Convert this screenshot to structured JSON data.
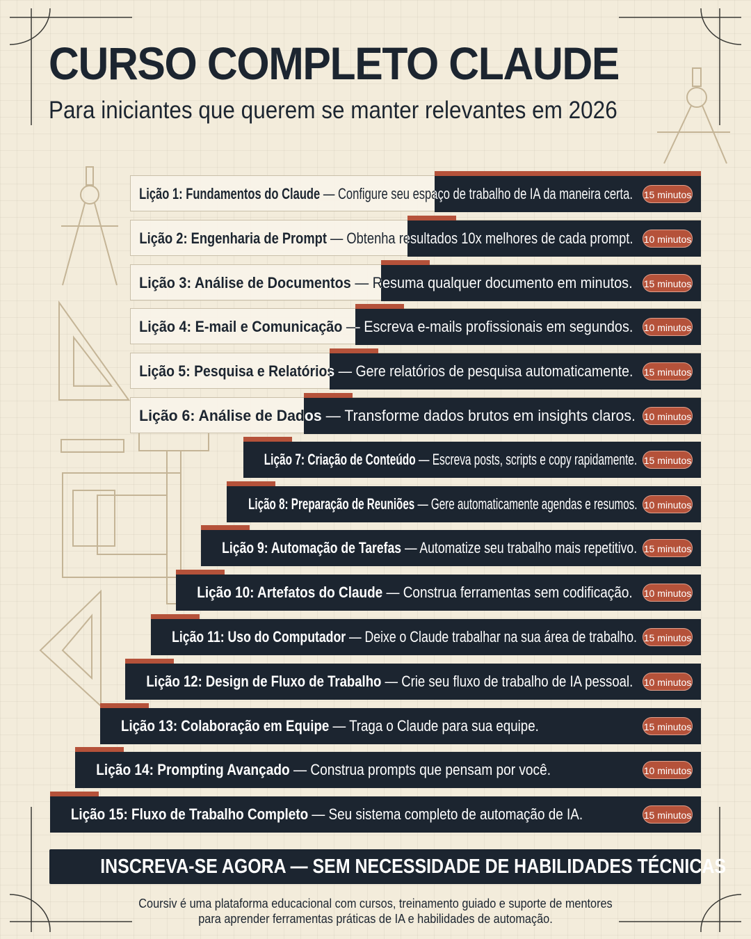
{
  "title": "CURSO COMPLETO CLAUDE",
  "subtitle": "Para iniciantes que querem se manter relevantes em 2026",
  "colors": {
    "background": "#f3ecdb",
    "dark": "#1c2530",
    "accent": "#b5523a"
  },
  "lessons": [
    {
      "title": "Lição 1: Fundamentos do Claude",
      "desc": " — Configure seu espaço de trabalho de IA da maneira certa.",
      "duration": "15 minutos"
    },
    {
      "title": "Lição 2: Engenharia de Prompt",
      "desc": " — Obtenha resultados 10x melhores de cada prompt.",
      "duration": "10 minutos"
    },
    {
      "title": "Lição 3: Análise de Documentos",
      "desc": " — Resuma qualquer documento em minutos.",
      "duration": "15 minutos"
    },
    {
      "title": "Lição 4: E-mail e Comunicação",
      "desc": " — Escreva e-mails profissionais em segundos.",
      "duration": "10 minutos"
    },
    {
      "title": "Lição 5: Pesquisa e Relatórios",
      "desc": " — Gere relatórios de pesquisa automaticamente.",
      "duration": "15 minutos"
    },
    {
      "title": "Lição 6: Análise de Dados",
      "desc": " — Transforme dados brutos em insights claros.",
      "duration": "10 minutos"
    },
    {
      "title": "Lição 7: Criação de Conteúdo",
      "desc": " — Escreva posts, scripts e copy rapidamente.",
      "duration": "15 minutos"
    },
    {
      "title": "Lição 8: Preparação de Reuniões",
      "desc": " — Gere automaticamente agendas e resumos.",
      "duration": "10 minutos"
    },
    {
      "title": "Lição 9: Automação de Tarefas",
      "desc": " — Automatize seu trabalho mais repetitivo.",
      "duration": "15 minutos"
    },
    {
      "title": "Lição 10: Artefatos do Claude",
      "desc": " — Construa ferramentas sem codificação.",
      "duration": "10 minutos"
    },
    {
      "title": "Lição 11: Uso do Computador",
      "desc": " — Deixe o Claude trabalhar na sua área de trabalho.",
      "duration": "15 minutos"
    },
    {
      "title": "Lição 12: Design de Fluxo de Trabalho",
      "desc": " — Crie seu fluxo de trabalho de IA pessoal.",
      "duration": "10 minutos"
    },
    {
      "title": "Lição 13: Colaboração em Equipe",
      "desc": " — Traga o Claude para sua equipe.",
      "duration": "15 minutos"
    },
    {
      "title": "Lição 14: Prompting Avançado",
      "desc": " — Construa prompts que pensam por você.",
      "duration": "10 minutos"
    },
    {
      "title": "Lição 15: Fluxo de Trabalho Completo",
      "desc": " — Seu sistema completo de automação de IA.",
      "duration": "15 minutos"
    }
  ],
  "cta": "INSCREVA-SE AGORA — SEM NECESSIDADE DE HABILIDADES TÉCNICAS",
  "footer": "Coursiv é uma plataforma educacional com cursos, treinamento guiado e suporte de mentores para aprender ferramentas práticas de IA e habilidades de automação."
}
